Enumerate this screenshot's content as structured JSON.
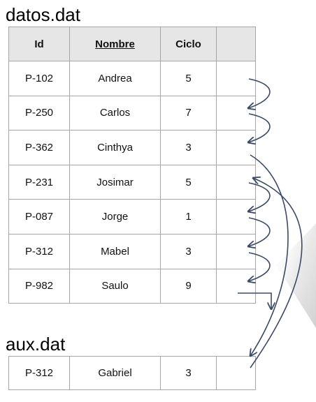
{
  "main_file": {
    "title": "datos.dat",
    "headers": [
      "Id",
      "Nombre",
      "Ciclo",
      ""
    ],
    "rows": [
      [
        "P-102",
        "Andrea",
        "5",
        ""
      ],
      [
        "P-250",
        "Carlos",
        "7",
        ""
      ],
      [
        "P-362",
        "Cinthya",
        "3",
        ""
      ],
      [
        "P-231",
        "Josimar",
        "5",
        ""
      ],
      [
        "P-087",
        "Jorge",
        "1",
        ""
      ],
      [
        "P-312",
        "Mabel",
        "3",
        ""
      ],
      [
        "P-982",
        "Saulo",
        "9",
        ""
      ]
    ]
  },
  "aux_file": {
    "title": "aux.dat",
    "rows": [
      [
        "P-312",
        "Gabriel",
        "3",
        ""
      ]
    ]
  },
  "colors": {
    "arrow": "#3a4a66",
    "border": "#a6a6a6",
    "header_bg": "#e6e6e6"
  }
}
